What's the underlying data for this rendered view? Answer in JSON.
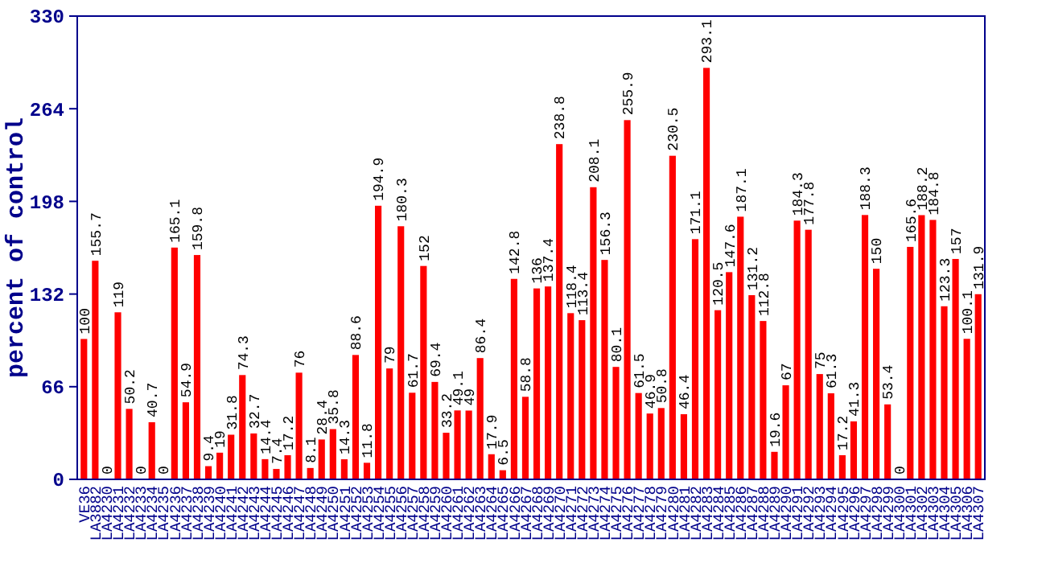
{
  "chart_data": {
    "type": "bar",
    "ylabel": "percent of control",
    "color": "#ff0000",
    "data_labels": true,
    "grid": false,
    "categories": [
      "VE36",
      "LA3882",
      "LA4230",
      "LA4231",
      "LA4232",
      "LA4233",
      "LA4234",
      "LA4235",
      "LA4236",
      "LA4237",
      "LA4238",
      "LA4239",
      "LA4240",
      "LA4241",
      "LA4242",
      "LA4243",
      "LA4244",
      "LA4245",
      "LA4246",
      "LA4247",
      "LA4248",
      "LA4249",
      "LA4250",
      "LA4251",
      "LA4252",
      "LA4253",
      "LA4254",
      "LA4255",
      "LA4256",
      "LA4257",
      "LA4258",
      "LA4259",
      "LA4260",
      "LA4261",
      "LA4262",
      "LA4263",
      "LA4264",
      "LA4265",
      "LA4266",
      "LA4267",
      "LA4268",
      "LA4269",
      "LA4270",
      "LA4271",
      "LA4272",
      "LA4273",
      "LA4274",
      "LA4275",
      "LA4276",
      "LA4277",
      "LA4278",
      "LA4279",
      "LA4280",
      "LA4281",
      "LA4282",
      "LA4283",
      "LA4284",
      "LA4285",
      "LA4286",
      "LA4287",
      "LA4288",
      "LA4289",
      "LA4290",
      "LA4291",
      "LA4292",
      "LA4293",
      "LA4294",
      "LA4295",
      "LA4296",
      "LA4297",
      "LA4298",
      "LA4299",
      "LA4300",
      "LA4301",
      "LA4302",
      "LA4303",
      "LA4304",
      "LA4305",
      "LA4306",
      "LA4307"
    ],
    "values": [
      100,
      155.7,
      0,
      119,
      50.2,
      0,
      40.7,
      0,
      165.1,
      54.9,
      159.8,
      9.4,
      19,
      31.8,
      74.3,
      32.7,
      14.4,
      7.4,
      17.2,
      76,
      8.1,
      28.4,
      35.8,
      14.3,
      88.6,
      11.8,
      194.9,
      79,
      180.3,
      61.7,
      152,
      69.4,
      33.2,
      49.1,
      49,
      86.4,
      17.9,
      6.5,
      142.8,
      58.8,
      136,
      137.4,
      238.8,
      118.4,
      113.4,
      208.1,
      156.3,
      80.1,
      255.9,
      61.5,
      46.9,
      50.8,
      230.5,
      46.4,
      171.1,
      293.1,
      120.5,
      147.6,
      187.1,
      131.2,
      112.8,
      19.6,
      67,
      184.3,
      177.8,
      75,
      61.3,
      17.2,
      41.3,
      188.3,
      150,
      53.4,
      0,
      165.6,
      188.2,
      184.8,
      123.3,
      157,
      100.1,
      131.9
    ],
    "ylim": [
      0,
      330
    ],
    "yticks": [
      0,
      66,
      132,
      198,
      264,
      330
    ]
  }
}
